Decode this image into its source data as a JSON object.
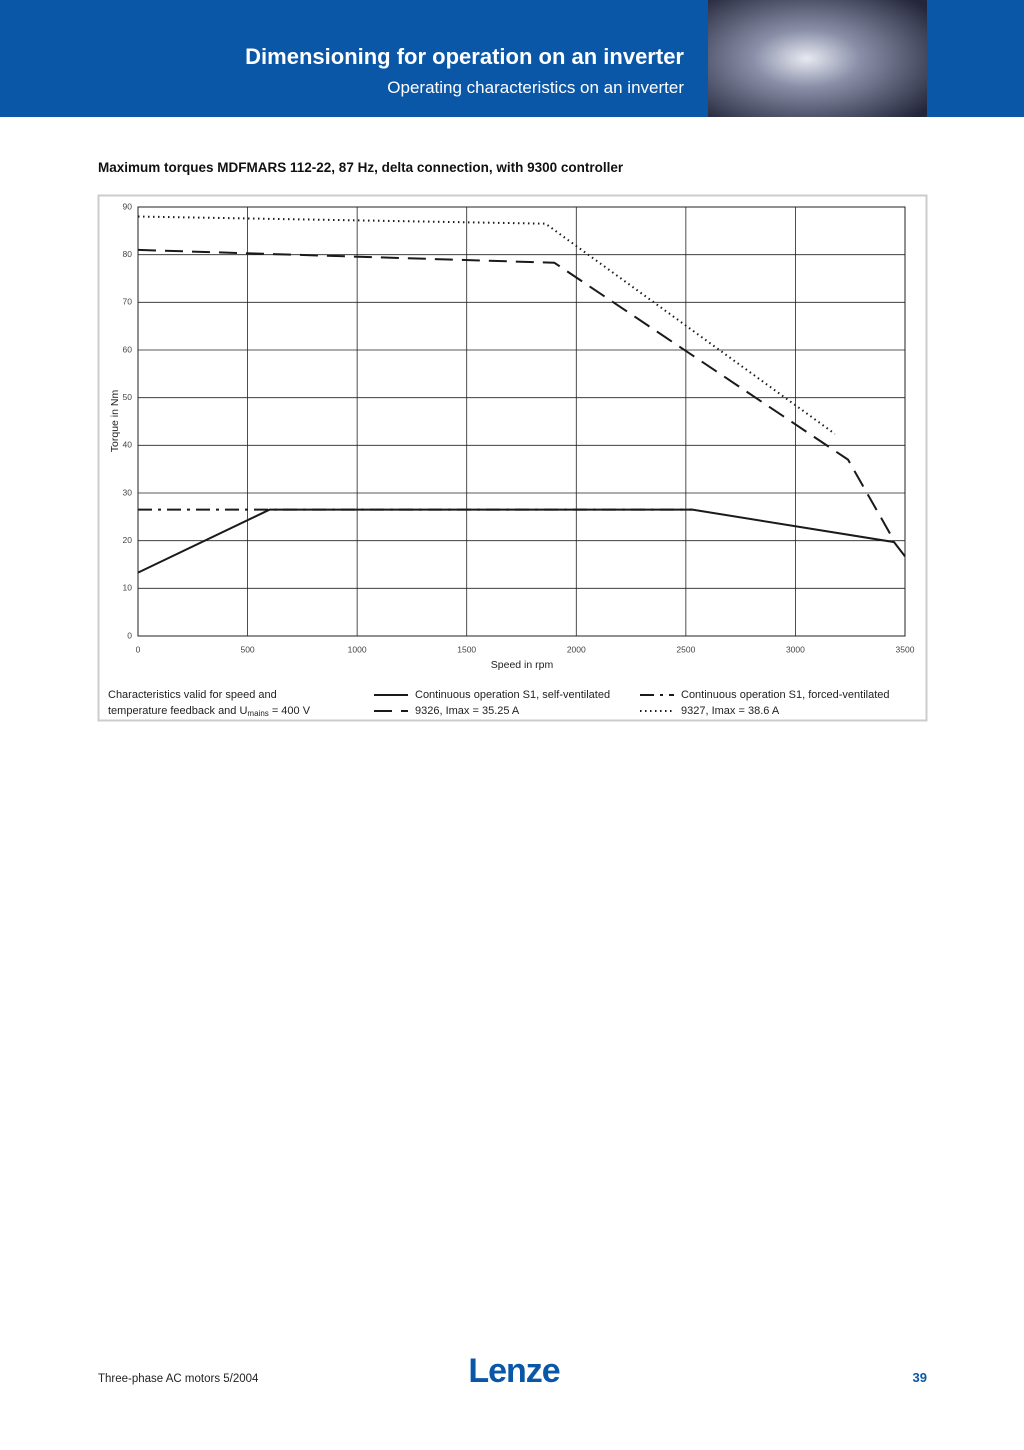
{
  "header": {
    "title": "Dimensioning for operation on an inverter",
    "subtitle": "Operating characteristics on an inverter"
  },
  "chart_data": {
    "type": "line",
    "title": "Maximum torques MDFMARS 112-22, 87 Hz, delta connection, with 9300 controller",
    "x_label": "Speed in rpm",
    "y_label": "Torque in Nm",
    "xlim": [
      0,
      3500
    ],
    "xticks": [
      0,
      500,
      1000,
      1500,
      2000,
      2500,
      3000,
      3500
    ],
    "ylim": [
      0,
      90
    ],
    "yticks": [
      0,
      10,
      20,
      30,
      40,
      50,
      60,
      70,
      80,
      90
    ],
    "grid": true,
    "series": [
      {
        "name": "Continuous operation S1, self-ventilated",
        "color": "#1a1a1a",
        "dash": "none",
        "x": [
          0,
          600,
          2530,
          3450,
          3500
        ],
        "values": [
          13.3,
          26.5,
          26.5,
          19.7,
          16.7
        ]
      },
      {
        "name": "Continuous operation S1, forced-ventilated",
        "color": "#1a1a1a",
        "dash": "14 6 3 6",
        "x": [
          0,
          2530
        ],
        "values": [
          26.5,
          26.5
        ]
      },
      {
        "name": "9326, Imax = 35.25 A",
        "color": "#1a1a1a",
        "dash": "18 9",
        "x": [
          0,
          1900,
          3240,
          3450
        ],
        "values": [
          81,
          78.3,
          37,
          20
        ]
      },
      {
        "name": "9327, Imax = 38.6 A",
        "color": "#1a1a1a",
        "dash": "1.5 3.5",
        "x": [
          0,
          1860,
          3180
        ],
        "values": [
          88,
          86.5,
          42.4
        ]
      }
    ]
  },
  "chart_note": {
    "line1": "Characteristics valid for speed and",
    "line2": "temperature feedback and U",
    "subscript": "mains",
    "line2_end": " = 400 V"
  },
  "footer": {
    "left": "Three-phase AC motors 5/2004",
    "logo": "Lenze",
    "page": "39"
  }
}
